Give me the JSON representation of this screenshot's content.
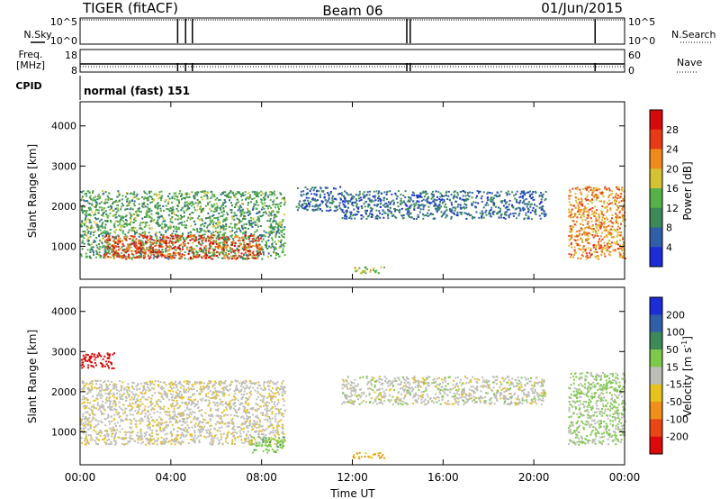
{
  "header": {
    "radar": "TIGER (fitACF)",
    "beam": "Beam 06",
    "date": "01/Jun/2015"
  },
  "top_panels": {
    "nsky_label": "N.Sky",
    "nsky_ticks": [
      "10^5",
      "10^0"
    ],
    "nsearch_label": "N.Search",
    "nsearch_ticks": [
      "10^5",
      "10^0"
    ],
    "freq_label_1": "Freq.",
    "freq_label_2": "[MHz]",
    "freq_ticks": [
      "18",
      "8"
    ],
    "nave_label": "Nave",
    "nave_ticks": [
      "60",
      "0"
    ],
    "cpid_label": "CPID",
    "cpid_value": "normal (fast) 151",
    "gap_hours": [
      4.3,
      4.65,
      4.95,
      14.4,
      14.55,
      22.7
    ]
  },
  "chart_data": [
    {
      "type": "heatmap",
      "name": "power",
      "ylabel": "Slant Range [km]",
      "yticks": [
        "1000",
        "2000",
        "3000",
        "4000"
      ],
      "ylim": [
        180,
        4600
      ],
      "xlim": [
        0,
        24
      ],
      "colorbar_label": "Power [dB]",
      "colorbar_ticks": [
        "4",
        "8",
        "12",
        "16",
        "20",
        "24",
        "28"
      ],
      "colorbar_range": [
        0,
        32
      ],
      "colors": [
        "#1c2cd6",
        "#2f5fa8",
        "#3b8a58",
        "#56b148",
        "#d4c232",
        "#f08a1a",
        "#e83a14",
        "#d60a0a"
      ],
      "regions": [
        {
          "t": [
            0,
            9
          ],
          "r": [
            700,
            2400
          ],
          "v": 12
        },
        {
          "t": [
            1,
            8
          ],
          "r": [
            700,
            1300
          ],
          "v": 26
        },
        {
          "t": [
            9.5,
            11.5
          ],
          "r": [
            1900,
            2500
          ],
          "v": 6
        },
        {
          "t": [
            11.5,
            20.5
          ],
          "r": [
            1700,
            2400
          ],
          "v": 7
        },
        {
          "t": [
            12,
            13.5
          ],
          "r": [
            350,
            500
          ],
          "v": 16
        },
        {
          "t": [
            21.5,
            24
          ],
          "r": [
            700,
            2500
          ],
          "v": 22
        }
      ]
    },
    {
      "type": "heatmap",
      "name": "velocity",
      "ylabel": "Slant Range [km]",
      "yticks": [
        "1000",
        "2000",
        "3000",
        "4000"
      ],
      "ylim": [
        180,
        4600
      ],
      "xlim": [
        0,
        24
      ],
      "xticks": [
        "00:00",
        "04:00",
        "08:00",
        "12:00",
        "16:00",
        "20:00",
        "00:00"
      ],
      "xlabel": "Time UT",
      "colorbar_label": "Velocity [m s",
      "colorbar_label_sup": "-1",
      "colorbar_label_end": "]",
      "colorbar_ticks": [
        "200",
        "100",
        "50",
        "15",
        "-15",
        "-50",
        "-100",
        "-200"
      ],
      "colors": [
        "#1c2cd6",
        "#2f5fa8",
        "#3b8a58",
        "#7ec84a",
        "#bdbdb8",
        "#e8c21c",
        "#f0901a",
        "#e84614",
        "#dc0a0a"
      ],
      "regions": [
        {
          "t": [
            0,
            9
          ],
          "r": [
            700,
            2300
          ],
          "v": -5
        },
        {
          "t": [
            0,
            1.5
          ],
          "r": [
            2600,
            3000
          ],
          "v": -250
        },
        {
          "t": [
            7.5,
            9
          ],
          "r": [
            500,
            900
          ],
          "v": 35
        },
        {
          "t": [
            11.5,
            20.5
          ],
          "r": [
            1700,
            2400
          ],
          "v": 0
        },
        {
          "t": [
            12,
            13.5
          ],
          "r": [
            350,
            500
          ],
          "v": -50
        },
        {
          "t": [
            21.5,
            24
          ],
          "r": [
            700,
            2500
          ],
          "v": 20
        }
      ]
    }
  ]
}
